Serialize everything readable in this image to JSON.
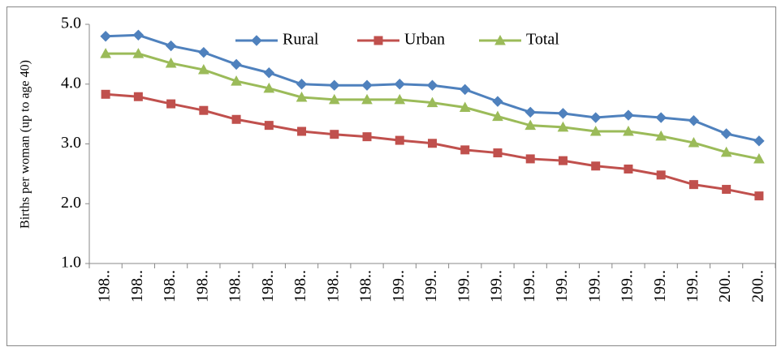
{
  "chart_data": {
    "type": "line",
    "y_label": "Births per woman (up to age 40)",
    "categories": [
      "198..",
      "198..",
      "198..",
      "198..",
      "198..",
      "198..",
      "198..",
      "198..",
      "198..",
      "199..",
      "199..",
      "199..",
      "199..",
      "199..",
      "199..",
      "199..",
      "199..",
      "199..",
      "199..",
      "200..",
      "200.."
    ],
    "series": [
      {
        "name": "Rural",
        "color": "#4f81bd",
        "marker": "diamond",
        "values": [
          4.8,
          4.82,
          4.64,
          4.53,
          4.33,
          4.19,
          4.0,
          3.98,
          3.98,
          4.0,
          3.98,
          3.91,
          3.71,
          3.53,
          3.51,
          3.44,
          3.48,
          3.44,
          3.39,
          3.17,
          3.05
        ]
      },
      {
        "name": "Urban",
        "color": "#c0504d",
        "marker": "square",
        "values": [
          3.83,
          3.79,
          3.67,
          3.56,
          3.41,
          3.31,
          3.21,
          3.16,
          3.12,
          3.06,
          3.01,
          2.9,
          2.85,
          2.75,
          2.72,
          2.63,
          2.58,
          2.48,
          2.32,
          2.24,
          2.13
        ]
      },
      {
        "name": "Total",
        "color": "#9bbb59",
        "marker": "triangle",
        "values": [
          4.51,
          4.51,
          4.35,
          4.24,
          4.05,
          3.93,
          3.78,
          3.74,
          3.74,
          3.74,
          3.69,
          3.61,
          3.46,
          3.31,
          3.28,
          3.21,
          3.21,
          3.13,
          3.02,
          2.86,
          2.75
        ]
      }
    ],
    "ylim": [
      1.0,
      5.0
    ],
    "yticks": [
      {
        "value": 1,
        "label": "1.0"
      },
      {
        "value": 2,
        "label": "2.0"
      },
      {
        "value": 3,
        "label": "3.0"
      },
      {
        "value": 4,
        "label": "4.0"
      },
      {
        "value": 5,
        "label": "5.0"
      }
    ],
    "grid": false,
    "legend": "top"
  }
}
